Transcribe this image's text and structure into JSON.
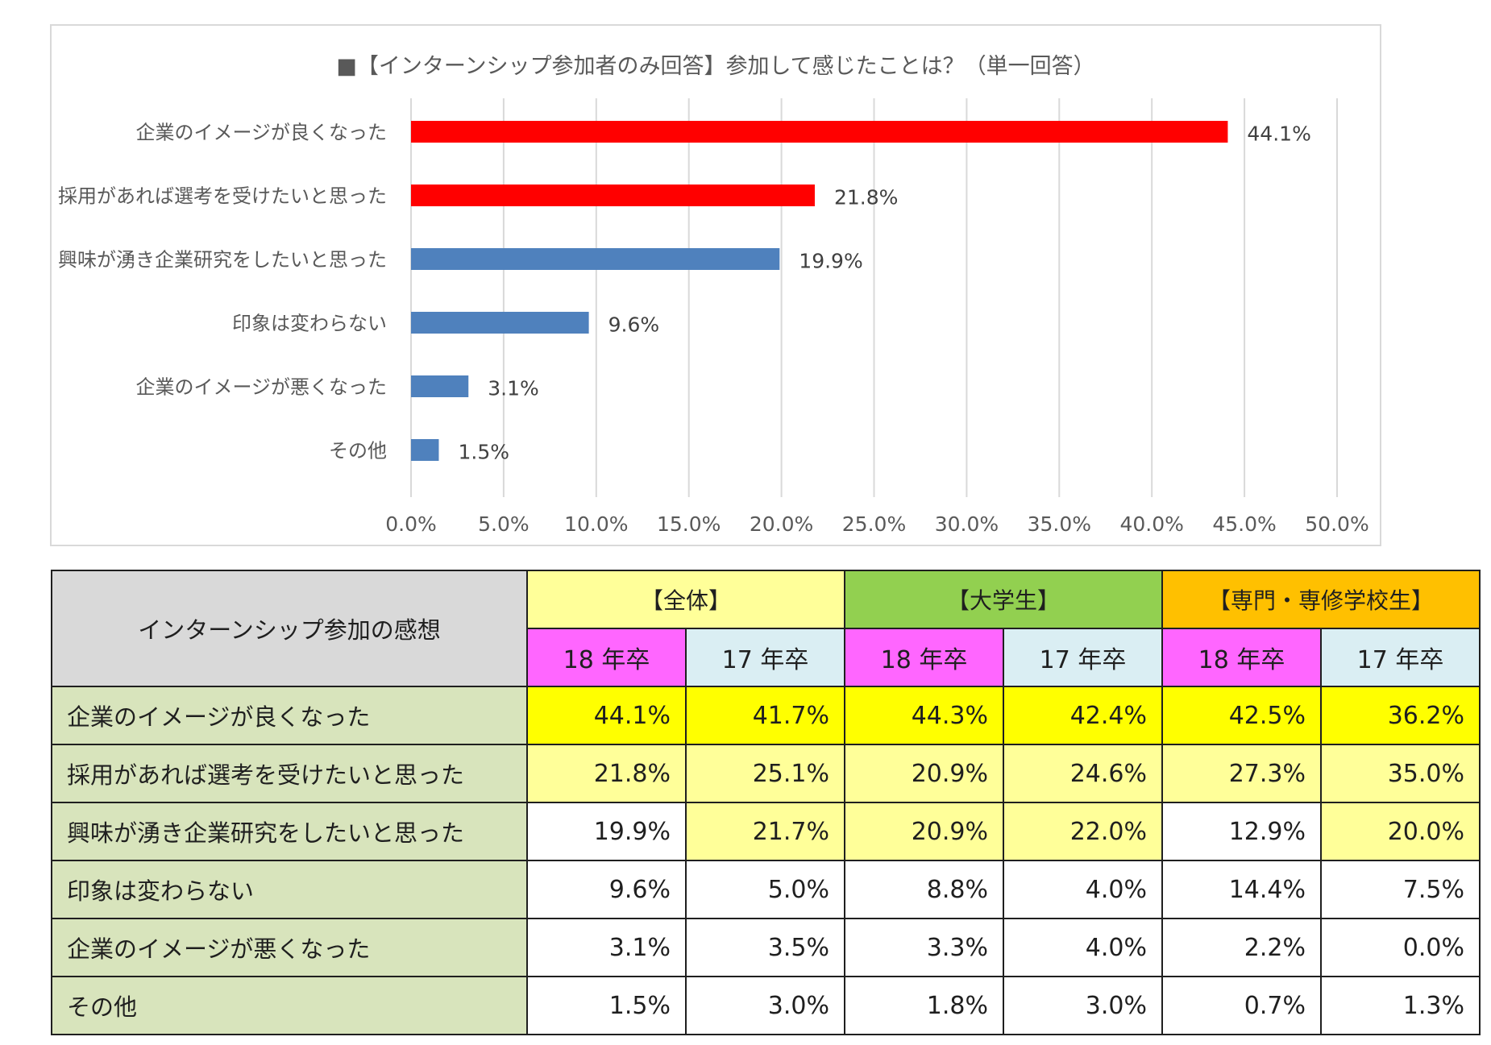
{
  "colors": {
    "highlight_bar": "#ff0000",
    "normal_bar": "#4f81bd",
    "strong_cell": "#ffff00",
    "light_cell": "#ffff99",
    "label_cell": "#d8e4bc",
    "year18": "#ff66ff",
    "year17": "#daeef3"
  },
  "chart_data": {
    "type": "bar",
    "orientation": "horizontal",
    "title": "■【インターンシップ参加者のみ回答】参加して感じたことは？（単一回答）",
    "categories": [
      "企業のイメージが良くなった",
      "採用があれば選考を受けたいと思った",
      "興味が湧き企業研究をしたいと思った",
      "印象は変わらない",
      "企業のイメージが悪くなった",
      "その他"
    ],
    "values": [
      44.1,
      21.8,
      19.9,
      9.6,
      3.1,
      1.5
    ],
    "value_labels": [
      "44.1%",
      "21.8%",
      "19.9%",
      "9.6%",
      "3.1%",
      "1.5%"
    ],
    "bar_colors": [
      "#ff0000",
      "#ff0000",
      "#4f81bd",
      "#4f81bd",
      "#4f81bd",
      "#4f81bd"
    ],
    "xlim": [
      0,
      50
    ],
    "xticks": [
      "0.0%",
      "5.0%",
      "10.0%",
      "15.0%",
      "20.0%",
      "25.0%",
      "30.0%",
      "35.0%",
      "40.0%",
      "45.0%",
      "50.0%"
    ],
    "grid": true,
    "legend": "none"
  },
  "table": {
    "header_title": "インターンシップ参加の感想",
    "groups": [
      "【全体】",
      "【大学生】",
      "【専門・専修学校生】"
    ],
    "years": [
      "18 年卒",
      "17 年卒",
      "18 年卒",
      "17 年卒",
      "18 年卒",
      "17 年卒"
    ],
    "rows": [
      {
        "label": "企業のイメージが良くなった",
        "values": [
          "44.1%",
          "41.7%",
          "44.3%",
          "42.4%",
          "42.5%",
          "36.2%"
        ],
        "highlight": [
          "strong",
          "strong",
          "strong",
          "strong",
          "strong",
          "strong"
        ]
      },
      {
        "label": "採用があれば選考を受けたいと思った",
        "values": [
          "21.8%",
          "25.1%",
          "20.9%",
          "24.6%",
          "27.3%",
          "35.0%"
        ],
        "highlight": [
          "light",
          "light",
          "light",
          "light",
          "light",
          "light"
        ]
      },
      {
        "label": "興味が湧き企業研究をしたいと思った",
        "values": [
          "19.9%",
          "21.7%",
          "20.9%",
          "22.0%",
          "12.9%",
          "20.0%"
        ],
        "highlight": [
          "none",
          "light",
          "light",
          "light",
          "none",
          "light"
        ]
      },
      {
        "label": "印象は変わらない",
        "values": [
          "9.6%",
          "5.0%",
          "8.8%",
          "4.0%",
          "14.4%",
          "7.5%"
        ],
        "highlight": [
          "none",
          "none",
          "none",
          "none",
          "none",
          "none"
        ]
      },
      {
        "label": "企業のイメージが悪くなった",
        "values": [
          "3.1%",
          "3.5%",
          "3.3%",
          "4.0%",
          "2.2%",
          "0.0%"
        ],
        "highlight": [
          "none",
          "none",
          "none",
          "none",
          "none",
          "none"
        ]
      },
      {
        "label": "その他",
        "values": [
          "1.5%",
          "3.0%",
          "1.8%",
          "3.0%",
          "0.7%",
          "1.3%"
        ],
        "highlight": [
          "none",
          "none",
          "none",
          "none",
          "none",
          "none"
        ]
      }
    ]
  }
}
